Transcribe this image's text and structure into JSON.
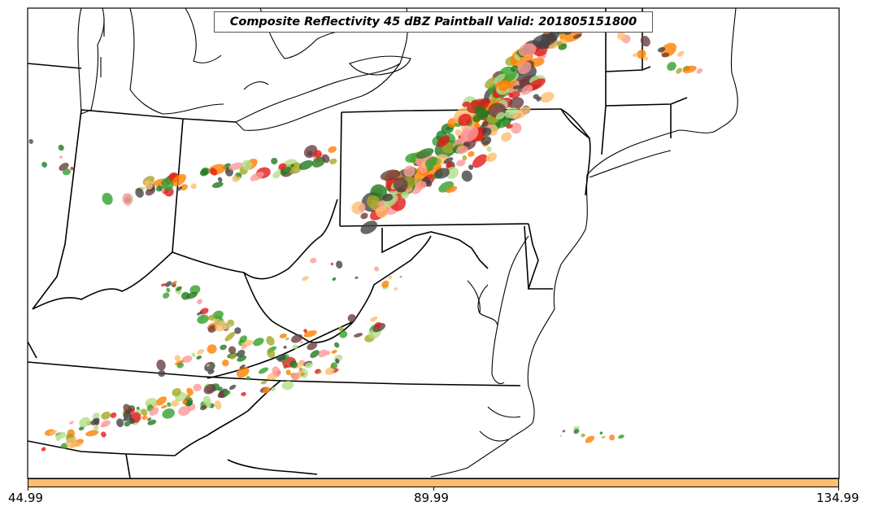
{
  "title": "Composite Reflectivity 45 dBZ Paintball Valid: 201805151800",
  "colorbar": {
    "color": "#fdbf6f",
    "min_label": "44.99",
    "mid_label": "89.99",
    "max_label": "134.99"
  },
  "paintball_colors": [
    "#e31a1c",
    "#ff7f00",
    "#33a02c",
    "#fb9a99",
    "#fdbf6f",
    "#b2df8a",
    "#a6a627",
    "#6a3d3d",
    "#444444",
    "#1f7a1f"
  ]
}
